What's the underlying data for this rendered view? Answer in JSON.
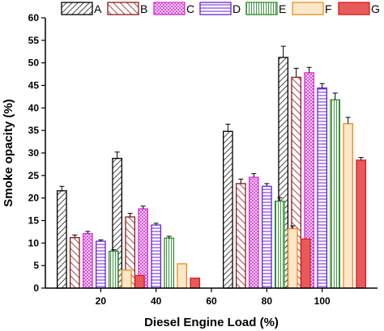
{
  "chart_data": {
    "type": "bar",
    "xlabel": "Diesel Engine Load (%)",
    "ylabel": "Smoke opacity (%)",
    "ylim": [
      0,
      60
    ],
    "yticks": [
      0,
      5,
      10,
      15,
      20,
      25,
      30,
      35,
      40,
      45,
      50,
      55,
      60
    ],
    "xlim": [
      0,
      120
    ],
    "xticks": [
      20,
      40,
      60,
      80,
      100
    ],
    "categories": [
      "20",
      "40",
      "60",
      "80",
      "100"
    ],
    "group_x": [
      20,
      40,
      60,
      80,
      100
    ],
    "legend_position": "top",
    "grid": false,
    "series": [
      {
        "name": "A",
        "color": "#000000",
        "fill": "#ffffff",
        "pattern": "diagonal-right",
        "values": [
          21.6,
          28.8,
          null,
          34.8,
          51.2
        ],
        "errors": [
          1.0,
          1.4,
          null,
          1.6,
          2.5
        ]
      },
      {
        "name": "B",
        "color": "#8b1a1a",
        "fill": "#ffffff",
        "pattern": "diagonal-left",
        "values": [
          11.2,
          15.8,
          null,
          23.2,
          46.8
        ],
        "errors": [
          0.6,
          0.8,
          null,
          1.0,
          2.0
        ]
      },
      {
        "name": "C",
        "color": "#d633d6",
        "fill": "#ffffff",
        "pattern": "crosshatch",
        "values": [
          12.1,
          17.6,
          null,
          24.6,
          47.8
        ],
        "errors": [
          0.5,
          0.6,
          null,
          0.8,
          1.2
        ]
      },
      {
        "name": "D",
        "color": "#6a1fd1",
        "fill": "#ffffff",
        "pattern": "horizontal",
        "values": [
          10.4,
          14.0,
          null,
          22.6,
          44.4
        ],
        "errors": [
          0.3,
          0.4,
          null,
          0.6,
          1.0
        ]
      },
      {
        "name": "E",
        "color": "#2e8b2e",
        "fill": "#ffffff",
        "pattern": "vertical",
        "values": [
          8.2,
          11.1,
          null,
          19.3,
          41.8
        ],
        "errors": [
          0.3,
          0.4,
          null,
          0.8,
          1.5
        ]
      },
      {
        "name": "F",
        "color": "#f08a1c",
        "fill": "#fbe8c8",
        "pattern": "solid",
        "values": [
          4.0,
          5.4,
          null,
          13.2,
          36.5
        ],
        "errors": [
          null,
          null,
          null,
          0.6,
          1.4
        ]
      },
      {
        "name": "G",
        "color": "#d81b1b",
        "fill": "#e85a5a",
        "pattern": "solid",
        "values": [
          2.8,
          2.2,
          null,
          10.9,
          28.4
        ],
        "errors": [
          null,
          null,
          null,
          null,
          0.6
        ]
      }
    ]
  }
}
